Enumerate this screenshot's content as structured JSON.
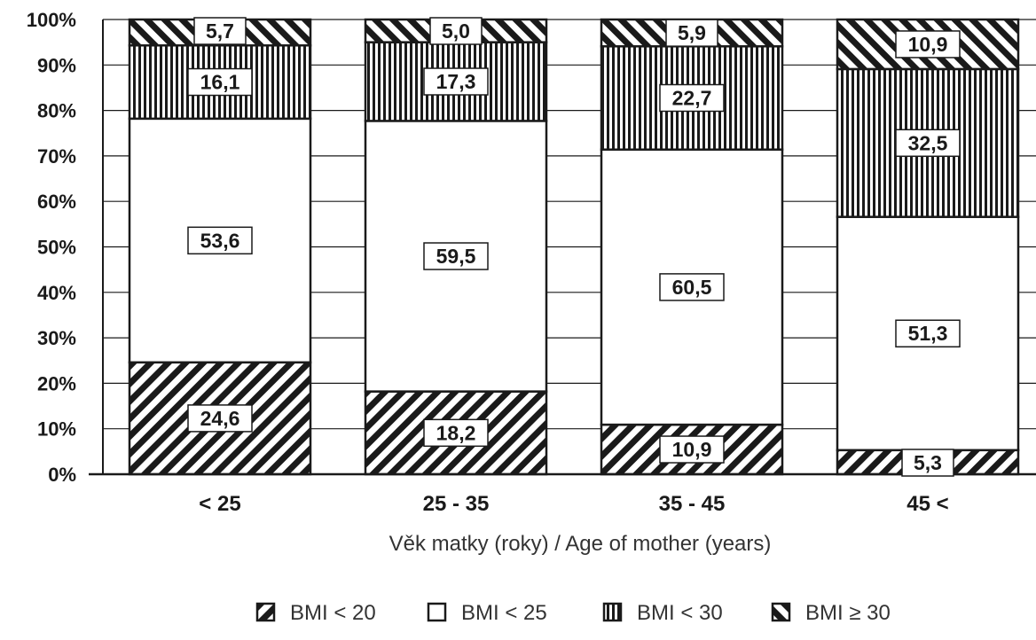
{
  "chart_data": {
    "type": "bar",
    "stacked": true,
    "categories": [
      "< 25",
      "25 - 35",
      "35 - 45",
      "45 <"
    ],
    "series": [
      {
        "name": "BMI < 20",
        "values": [
          24.6,
          18.2,
          10.9,
          5.3
        ],
        "labels": [
          "24,6",
          "18,2",
          "10,9",
          "5,3"
        ],
        "pattern": "diag-down"
      },
      {
        "name": "BMI < 25",
        "values": [
          53.6,
          59.5,
          60.5,
          51.3
        ],
        "labels": [
          "53,6",
          "59,5",
          "60,5",
          "51,3"
        ],
        "pattern": "white"
      },
      {
        "name": "BMI < 30",
        "values": [
          16.1,
          17.3,
          22.7,
          32.5
        ],
        "labels": [
          "16,1",
          "17,3",
          "22,7",
          "32,5"
        ],
        "pattern": "vertical"
      },
      {
        "name": "BMI ≥ 30",
        "values": [
          5.7,
          5.0,
          5.9,
          10.9
        ],
        "labels": [
          "5,7",
          "5,0",
          "5,9",
          "10,9"
        ],
        "pattern": "diag-up"
      }
    ],
    "title": "",
    "xlabel": "Věk matky (roky) / Age of mother (years)",
    "ylabel": "",
    "ylim": [
      0,
      100
    ],
    "yticks": [
      "0%",
      "10%",
      "20%",
      "30%",
      "40%",
      "50%",
      "60%",
      "70%",
      "80%",
      "90%",
      "100%"
    ],
    "grid": true,
    "legend": "bottom-center",
    "colors": {
      "ink": "#1a1a1a",
      "fill": "#ffffff"
    }
  }
}
